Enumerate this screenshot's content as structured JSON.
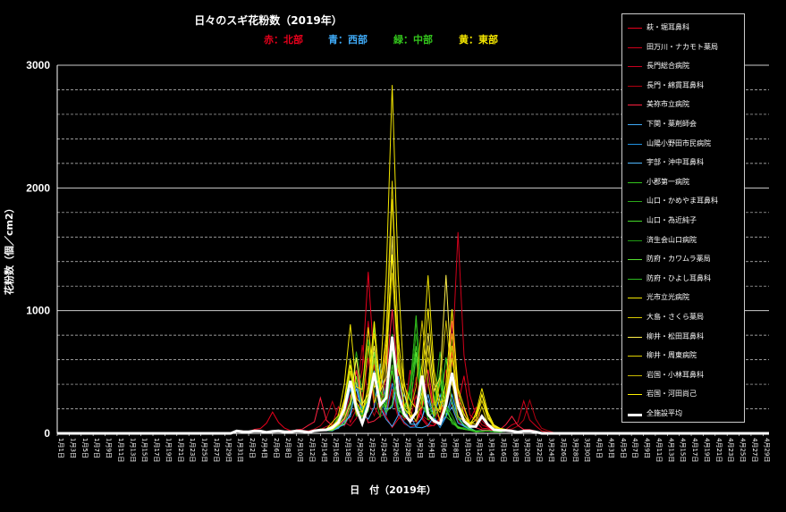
{
  "chart_data": {
    "type": "line",
    "title": "日々のスギ花粉数（2019年）",
    "region_key": [
      {
        "label": "赤：北部",
        "color": "#e8001c"
      },
      {
        "label": "青：西部",
        "color": "#3fa9f5"
      },
      {
        "label": "緑：中部",
        "color": "#33c41c"
      },
      {
        "label": "黄：東部",
        "color": "#f2e500"
      }
    ],
    "ylabel": "花粉数（個／cm2）",
    "xlabel": "日　付（2019年）",
    "ylim": [
      0,
      3000
    ],
    "yticks": [
      0,
      1000,
      2000,
      3000
    ],
    "grid": "horizontal dashed every 200",
    "legend_position": "right",
    "x_ticks": [
      "1月1日",
      "1月3日",
      "1月5日",
      "1月7日",
      "1月9日",
      "1月11日",
      "1月13日",
      "1月15日",
      "1月17日",
      "1月19日",
      "1月21日",
      "1月23日",
      "1月25日",
      "1月27日",
      "1月29日",
      "1月31日",
      "2月2日",
      "2月4日",
      "2月6日",
      "2月8日",
      "2月10日",
      "2月12日",
      "2月14日",
      "2月16日",
      "2月18日",
      "2月20日",
      "2月22日",
      "2月24日",
      "2月26日",
      "2月28日",
      "3月2日",
      "3月4日",
      "3月6日",
      "3月8日",
      "3月10日",
      "3月12日",
      "3月14日",
      "3月16日",
      "3月18日",
      "3月20日",
      "3月22日",
      "3月24日",
      "3月26日",
      "3月28日",
      "3月30日",
      "4月1日",
      "4月3日",
      "4月5日",
      "4月7日",
      "4月9日",
      "4月11日",
      "4月13日",
      "4月15日",
      "4月17日",
      "4月19日",
      "4月21日",
      "4月23日",
      "4月25日",
      "4月27日",
      "4月29日"
    ],
    "series": [
      {
        "name": "萩・堀耳鼻科",
        "color": "#e8001c",
        "width": 1,
        "peaks": [
          [
            36,
            160
          ],
          [
            49,
            300
          ],
          [
            52,
            1300
          ],
          [
            59,
            500
          ],
          [
            66,
            650
          ],
          [
            68,
            450
          ]
        ]
      },
      {
        "name": "田万川・ナカモト薬局",
        "color": "#d0001a",
        "width": 1,
        "peaks": [
          [
            48,
            250
          ],
          [
            52,
            900
          ],
          [
            56,
            350
          ],
          [
            62,
            400
          ],
          [
            67,
            1630
          ],
          [
            78,
            250
          ]
        ]
      },
      {
        "name": "長門総合病院",
        "color": "#c80020",
        "width": 1,
        "peaks": [
          [
            47,
            200
          ],
          [
            52,
            600
          ],
          [
            56,
            500
          ],
          [
            60,
            300
          ],
          [
            66,
            600
          ],
          [
            70,
            200
          ]
        ]
      },
      {
        "name": "長門・綿貫耳鼻科",
        "color": "#b00010",
        "width": 1,
        "peaks": [
          [
            46,
            250
          ],
          [
            51,
            700
          ],
          [
            55,
            700
          ],
          [
            60,
            450
          ],
          [
            65,
            500
          ],
          [
            79,
            250
          ]
        ]
      },
      {
        "name": "美祢市立病院",
        "color": "#ff2040",
        "width": 1,
        "peaks": [
          [
            44,
            270
          ],
          [
            50,
            500
          ],
          [
            56,
            1000
          ],
          [
            62,
            500
          ],
          [
            66,
            900
          ],
          [
            76,
            120
          ]
        ]
      },
      {
        "name": "下関・薬剤師会",
        "color": "#3fa9f5",
        "width": 1,
        "peaks": [
          [
            50,
            400
          ],
          [
            53,
            500
          ],
          [
            58,
            300
          ],
          [
            64,
            300
          ],
          [
            66,
            200
          ]
        ]
      },
      {
        "name": "山陽小野田市民病院",
        "color": "#2090e0",
        "width": 1,
        "peaks": [
          [
            49,
            350
          ],
          [
            53,
            600
          ],
          [
            56,
            400
          ],
          [
            62,
            250
          ],
          [
            66,
            250
          ]
        ]
      },
      {
        "name": "宇部・沖中耳鼻科",
        "color": "#50b8ff",
        "width": 1,
        "peaks": [
          [
            50,
            350
          ],
          [
            54,
            550
          ],
          [
            57,
            450
          ],
          [
            62,
            300
          ],
          [
            66,
            300
          ]
        ]
      },
      {
        "name": "小郡第一病院",
        "color": "#33c41c",
        "width": 1,
        "peaks": [
          [
            49,
            600
          ],
          [
            53,
            900
          ],
          [
            56,
            650
          ],
          [
            60,
            950
          ],
          [
            64,
            500
          ]
        ]
      },
      {
        "name": "山口・かめやま耳鼻科",
        "color": "#2aa818",
        "width": 1,
        "peaks": [
          [
            50,
            650
          ],
          [
            52,
            750
          ],
          [
            56,
            800
          ],
          [
            60,
            900
          ],
          [
            64,
            650
          ]
        ]
      },
      {
        "name": "山口・為近純子",
        "color": "#44d828",
        "width": 1,
        "peaks": [
          [
            49,
            500
          ],
          [
            53,
            850
          ],
          [
            57,
            600
          ],
          [
            60,
            700
          ],
          [
            65,
            600
          ]
        ]
      },
      {
        "name": "済生会山口病院",
        "color": "#1f9a12",
        "width": 1,
        "peaks": [
          [
            49,
            550
          ],
          [
            53,
            700
          ],
          [
            56,
            700
          ],
          [
            60,
            800
          ],
          [
            64,
            500
          ]
        ]
      },
      {
        "name": "防府・カワムラ薬局",
        "color": "#55e030",
        "width": 1,
        "peaks": [
          [
            50,
            450
          ],
          [
            53,
            650
          ],
          [
            56,
            550
          ],
          [
            60,
            650
          ],
          [
            64,
            450
          ]
        ]
      },
      {
        "name": "防府・ひよし耳鼻科",
        "color": "#2cb820",
        "width": 1,
        "peaks": [
          [
            49,
            400
          ],
          [
            53,
            600
          ],
          [
            56,
            500
          ],
          [
            60,
            600
          ],
          [
            64,
            400
          ]
        ]
      },
      {
        "name": "光市立光病院",
        "color": "#f2e500",
        "width": 1,
        "peaks": [
          [
            49,
            880
          ],
          [
            52,
            850
          ],
          [
            56,
            2830
          ],
          [
            62,
            1270
          ],
          [
            66,
            700
          ],
          [
            71,
            350
          ]
        ]
      },
      {
        "name": "大島・さくら薬局",
        "color": "#d8c800",
        "width": 1,
        "peaks": [
          [
            49,
            600
          ],
          [
            52,
            700
          ],
          [
            56,
            1900
          ],
          [
            62,
            600
          ],
          [
            66,
            600
          ],
          [
            71,
            250
          ]
        ]
      },
      {
        "name": "柳井・松田耳鼻科",
        "color": "#fff04a",
        "width": 1,
        "peaks": [
          [
            50,
            600
          ],
          [
            53,
            700
          ],
          [
            56,
            1600
          ],
          [
            62,
            800
          ],
          [
            65,
            1270
          ],
          [
            71,
            300
          ]
        ]
      },
      {
        "name": "柳井・周東病院",
        "color": "#e0d000",
        "width": 1,
        "peaks": [
          [
            49,
            500
          ],
          [
            53,
            800
          ],
          [
            56,
            2050
          ],
          [
            62,
            700
          ],
          [
            66,
            800
          ],
          [
            71,
            200
          ]
        ]
      },
      {
        "name": "岩国・小林耳鼻科",
        "color": "#c8b800",
        "width": 1,
        "peaks": [
          [
            49,
            400
          ],
          [
            53,
            600
          ],
          [
            56,
            1300
          ],
          [
            61,
            900
          ],
          [
            65,
            900
          ],
          [
            71,
            250
          ]
        ]
      },
      {
        "name": "岩国・河田尚己",
        "color": "#fff000",
        "width": 1,
        "peaks": [
          [
            49,
            550
          ],
          [
            53,
            900
          ],
          [
            56,
            1450
          ],
          [
            62,
            1000
          ],
          [
            66,
            1000
          ],
          [
            71,
            300
          ]
        ]
      },
      {
        "name": "全施設平均",
        "color": "#ffffff",
        "width": 3,
        "peaks": [
          [
            49,
            420
          ],
          [
            53,
            480
          ],
          [
            56,
            780
          ],
          [
            61,
            450
          ],
          [
            66,
            480
          ],
          [
            71,
            120
          ]
        ]
      }
    ]
  }
}
